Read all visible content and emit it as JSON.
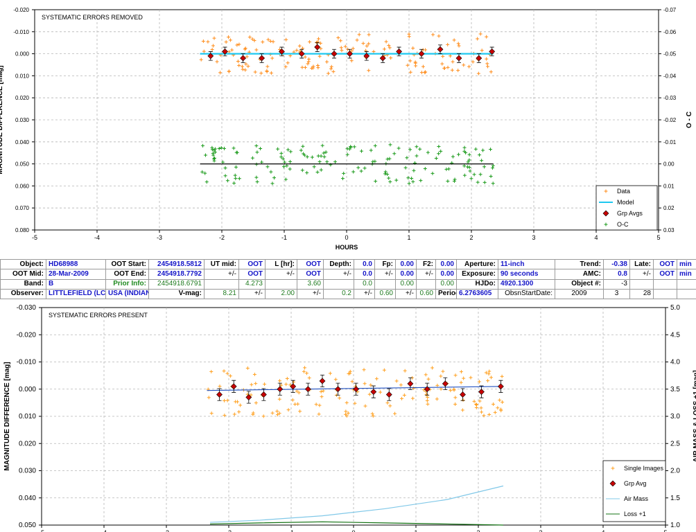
{
  "chart_data": [
    {
      "type": "scatter",
      "title": "SYSTEMATIC ERRORS REMOVED",
      "xlabel": "HOURS",
      "ylabel": "MAGNITUDE DIFFERENCE [mag]",
      "y2label": "O - C",
      "xlim": [
        -5,
        5
      ],
      "ylim": [
        -0.02,
        0.08
      ],
      "y_inverted": true,
      "y2lim": [
        -0.07,
        0.03
      ],
      "xticks": [
        "-5",
        "-4",
        "-3",
        "-2",
        "-1",
        "0",
        "1",
        "2",
        "3",
        "4",
        "5"
      ],
      "yticks": [
        "-0.020",
        "-0.010",
        "0.000",
        "0.010",
        "0.020",
        "0.030",
        "0.040",
        "0.050",
        "0.060",
        "0.070",
        "0.080"
      ],
      "y2ticks": [
        "-0.07",
        "-0.06",
        "-0.05",
        "-0.04",
        "-0.03",
        "-0.02",
        "-0.01",
        "0.00",
        "0.01",
        "0.02",
        "0.03"
      ],
      "grid": true,
      "legend_position": "bottom-right",
      "legend": [
        "Data",
        "Model",
        "Grp Avgs",
        "O-C"
      ],
      "series": [
        {
          "name": "Data",
          "color": "#ff8c1a",
          "marker": "plus",
          "x_range": [
            -2.35,
            2.35
          ],
          "count": 160,
          "center": 0.0,
          "scatter_pm": 0.009
        },
        {
          "name": "Model",
          "color": "#1ec8f0",
          "style": "line",
          "x": [
            -2.35,
            2.35
          ],
          "y": [
            0.0,
            0.0
          ]
        },
        {
          "name": "Grp Avgs",
          "color": "#c80000",
          "marker": "diamond",
          "errbar": 0.002,
          "x": [
            -2.18,
            -1.95,
            -1.66,
            -1.36,
            -1.04,
            -0.72,
            -0.47,
            -0.2,
            0.05,
            0.32,
            0.58,
            0.84,
            1.2,
            1.5,
            1.8,
            2.12,
            2.33
          ],
          "y": [
            0.001,
            -0.001,
            0.002,
            0.002,
            -0.001,
            0.0,
            -0.003,
            0.0,
            0.0,
            0.001,
            0.002,
            -0.001,
            0.0,
            -0.002,
            0.002,
            0.002,
            -0.001
          ]
        },
        {
          "name": "O-C",
          "color": "#1a9a1a",
          "marker": "plus",
          "x_range": [
            -2.35,
            2.35
          ],
          "count": 160,
          "center": 0.0,
          "scatter_pm": 0.009,
          "axis": "y2"
        },
        {
          "name": "O-C baseline",
          "color": "#000000",
          "style": "line",
          "axis": "y2",
          "x": [
            -2.35,
            2.35
          ],
          "y": [
            0.0,
            0.0
          ]
        }
      ]
    },
    {
      "type": "scatter",
      "title": "SYSTEMATIC ERRORS PRESENT",
      "xlabel": "",
      "ylabel": "MAGNITUDE DIFFERENCE [mag]",
      "y2label": "AIR MASS & LOSS +1 [mag]",
      "xlim": [
        -5,
        5
      ],
      "ylim": [
        -0.03,
        0.05
      ],
      "y_inverted": true,
      "y2lim": [
        1.0,
        5.0
      ],
      "xticks": [
        "-5",
        "-4",
        "-3",
        "-2",
        "-1",
        "0",
        "1",
        "2",
        "3",
        "4",
        "5"
      ],
      "yticks": [
        "-0.030",
        "-0.020",
        "-0.010",
        "0.000",
        "0.010",
        "0.020",
        "0.030",
        "0.040",
        "0.050"
      ],
      "y2ticks": [
        "5.0",
        "4.5",
        "4.0",
        "3.5",
        "3.0",
        "2.5",
        "2.0",
        "1.5",
        "1.0"
      ],
      "grid": true,
      "legend_position": "bottom-right",
      "legend": [
        "Single Images",
        "Grp Avg",
        "Air Mass",
        "Loss +1"
      ],
      "series": [
        {
          "name": "Single Images",
          "color": "#ffa020",
          "marker": "plus",
          "x_range": [
            -2.35,
            2.4
          ],
          "count": 150,
          "center": 0.001,
          "scatter_pm": 0.009
        },
        {
          "name": "Trend",
          "color": "#2050c0",
          "style": "line",
          "x": [
            -2.35,
            2.4
          ],
          "y": [
            0.0005,
            -0.001
          ]
        },
        {
          "name": "Grp Avg",
          "color": "#c80000",
          "marker": "diamond",
          "errbar": 0.0022,
          "x": [
            -2.15,
            -1.92,
            -1.68,
            -1.44,
            -1.18,
            -0.97,
            -0.73,
            -0.5,
            -0.25,
            0.04,
            0.32,
            0.57,
            0.91,
            1.18,
            1.47,
            1.75,
            2.05,
            2.36
          ],
          "y": [
            0.002,
            -0.001,
            0.003,
            0.002,
            0.0,
            -0.001,
            0.0,
            -0.003,
            0.0,
            0.0,
            0.001,
            0.002,
            -0.002,
            0.0,
            -0.002,
            0.002,
            0.001,
            -0.001
          ]
        },
        {
          "name": "Air Mass",
          "color": "#80c8e8",
          "style": "line",
          "axis": "y2",
          "x": [
            -2.3,
            -1.5,
            -0.5,
            0.5,
            1.5,
            2.4
          ],
          "y": [
            1.05,
            1.09,
            1.17,
            1.3,
            1.47,
            1.72
          ]
        },
        {
          "name": "Loss +1",
          "color": "#107010",
          "style": "line",
          "axis": "y2",
          "x": [
            -2.3,
            -1.5,
            -0.5,
            0.5,
            1.5,
            2.4
          ],
          "y": [
            1.02,
            1.04,
            1.06,
            1.04,
            1.02,
            1.0
          ]
        }
      ]
    }
  ],
  "info_table": {
    "rows": [
      [
        {
          "t": "Object:",
          "c": "lab"
        },
        {
          "t": "HD68988",
          "c": "vb"
        },
        {
          "t": "OOT Start:",
          "c": "lab"
        },
        {
          "t": "2454918.5812",
          "c": "vbr"
        },
        {
          "t": "UT mid:",
          "c": "lab"
        },
        {
          "t": "OOT",
          "c": "vbr"
        },
        {
          "t": "L [hr]:",
          "c": "lab"
        },
        {
          "t": "OOT",
          "c": "vbr"
        },
        {
          "t": "Depth:",
          "c": "lab"
        },
        {
          "t": "0.0",
          "c": "vbr"
        },
        {
          "t": "Fp:",
          "c": "lab"
        },
        {
          "t": "0.00",
          "c": "vbr"
        },
        {
          "t": "F2:",
          "c": "lab"
        },
        {
          "t": "0.00",
          "c": "vbr"
        },
        {
          "t": "Aperture:",
          "c": "lab"
        },
        {
          "t": "11-inch",
          "c": "vb"
        },
        {
          "t": "Trend:",
          "c": "lab"
        },
        {
          "t": "-0.38",
          "c": "vbr"
        },
        {
          "t": "Late:",
          "c": "lab"
        },
        {
          "t": "OOT",
          "c": "vbr"
        },
        {
          "t": "min",
          "c": "vb"
        }
      ],
      [
        {
          "t": "OOT Mid:",
          "c": "lab"
        },
        {
          "t": "28-Mar-2009",
          "c": "vb"
        },
        {
          "t": "OOT End:",
          "c": "lab"
        },
        {
          "t": "2454918.7792",
          "c": "vbr"
        },
        {
          "t": "+/-",
          "c": "vk"
        },
        {
          "t": "OOT",
          "c": "vbr"
        },
        {
          "t": "+/-",
          "c": "vk"
        },
        {
          "t": "OOT",
          "c": "vbr"
        },
        {
          "t": "+/-",
          "c": "vk"
        },
        {
          "t": "0.0",
          "c": "vbr"
        },
        {
          "t": "+/-",
          "c": "vk"
        },
        {
          "t": "0.00",
          "c": "vbr"
        },
        {
          "t": "+/-",
          "c": "vk"
        },
        {
          "t": "0.00",
          "c": "vbr"
        },
        {
          "t": "Exposure:",
          "c": "lab"
        },
        {
          "t": "90 seconds",
          "c": "vb"
        },
        {
          "t": "AMC:",
          "c": "lab"
        },
        {
          "t": "0.8",
          "c": "vbr"
        },
        {
          "t": "+/-",
          "c": "vk"
        },
        {
          "t": "OOT",
          "c": "vbr"
        },
        {
          "t": "min",
          "c": "vb"
        }
      ],
      [
        {
          "t": "Band:",
          "c": "lab"
        },
        {
          "t": "B",
          "c": "vb"
        },
        {
          "t": "Prior Info:",
          "c": "lab-g"
        },
        {
          "t": "2454918.6791",
          "c": "vr"
        },
        {
          "t": "",
          "c": "vk"
        },
        {
          "t": "4.273",
          "c": "vr"
        },
        {
          "t": "",
          "c": "vk"
        },
        {
          "t": "3.60",
          "c": "vr"
        },
        {
          "t": "",
          "c": "vk"
        },
        {
          "t": "0.0",
          "c": "vr"
        },
        {
          "t": "",
          "c": "vk"
        },
        {
          "t": "0.00",
          "c": "vr"
        },
        {
          "t": "",
          "c": "vk"
        },
        {
          "t": "0.00",
          "c": "vr"
        },
        {
          "t": "HJDo:",
          "c": "lab"
        },
        {
          "t": "4920.1300",
          "c": "vb"
        },
        {
          "t": "Object #:",
          "c": "lab"
        },
        {
          "t": "-3",
          "c": "vk"
        },
        {
          "t": "",
          "c": "vk"
        },
        {
          "t": "",
          "c": "vk"
        },
        {
          "t": "",
          "c": "vk"
        }
      ],
      [
        {
          "t": "Observer:",
          "c": "lab"
        },
        {
          "t": "LITTLEFIELD (LC2)",
          "c": "vb"
        },
        {
          "t": "USA (INDIANA)",
          "c": "vb"
        },
        {
          "t": "V-mag:",
          "c": "lab"
        },
        {
          "t": "8.21",
          "c": "vr"
        },
        {
          "t": "+/-",
          "c": "vk"
        },
        {
          "t": "2.00",
          "c": "vr"
        },
        {
          "t": "+/-",
          "c": "vk"
        },
        {
          "t": "0.2",
          "c": "vr"
        },
        {
          "t": "+/-",
          "c": "vk"
        },
        {
          "t": "0.60",
          "c": "vr"
        },
        {
          "t": "+/-",
          "c": "vk"
        },
        {
          "t": "0.60",
          "c": "vr"
        },
        {
          "t": "Period:",
          "c": "lab"
        },
        {
          "t": "6.2763605",
          "c": "vb"
        },
        {
          "t": "ObsnStartDate:",
          "c": "vk"
        },
        {
          "t": "2009",
          "c": "vc"
        },
        {
          "t": "3",
          "c": "vc"
        },
        {
          "t": "28",
          "c": "vk"
        },
        {
          "t": "",
          "c": "vk"
        },
        {
          "t": "",
          "c": "vk"
        }
      ]
    ]
  }
}
